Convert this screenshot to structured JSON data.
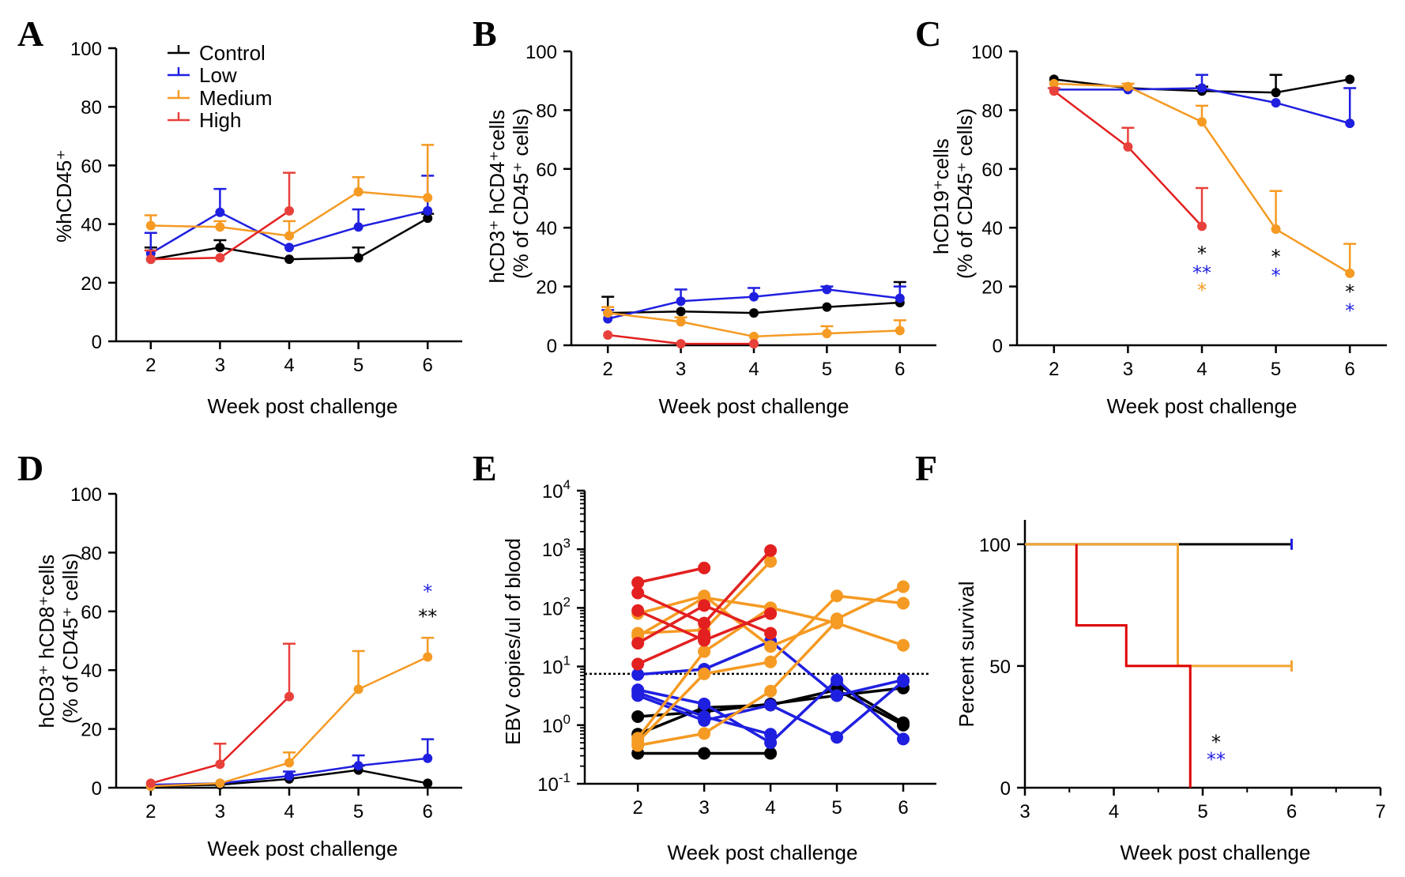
{
  "colors": {
    "control": "#000000",
    "low": "#1f1fe0",
    "medium": "#f59a23",
    "high": "#e8413b",
    "high_line": "#e32020",
    "survival_high": "#dd0000",
    "survival_medium": "#f2a533"
  },
  "chart_data": [
    {
      "id": "A",
      "panel_label": "A",
      "type": "line",
      "xlabel": "Week post challenge",
      "ylabel": "%hCD45⁺",
      "ylabel_lines": [
        "%hCD45⁺"
      ],
      "x_ticks": [
        "2",
        "3",
        "4",
        "5",
        "6"
      ],
      "y_ticks": [
        "0",
        "20",
        "40",
        "60",
        "80",
        "100"
      ],
      "xlim": [
        1.5,
        6.5
      ],
      "ylim": [
        0,
        100
      ],
      "legend": [
        {
          "label": "Control",
          "key": "control"
        },
        {
          "label": "Low",
          "key": "low"
        },
        {
          "label": "Medium",
          "key": "medium"
        },
        {
          "label": "High",
          "key": "high"
        }
      ],
      "series": [
        {
          "name": "Control",
          "key": "control",
          "x": [
            2,
            3,
            4,
            5,
            6
          ],
          "y": [
            28,
            32,
            28,
            28.5,
            42
          ],
          "err": [
            4,
            2.5,
            0,
            3.5,
            1.5
          ]
        },
        {
          "name": "Low",
          "key": "low",
          "x": [
            2,
            3,
            4,
            5,
            6
          ],
          "y": [
            30,
            44,
            32,
            39,
            44.5
          ],
          "err": [
            7,
            8,
            0,
            6,
            12
          ]
        },
        {
          "name": "Medium",
          "key": "medium",
          "x": [
            2,
            3,
            4,
            5,
            6
          ],
          "y": [
            39.5,
            39,
            36,
            51,
            49
          ],
          "err": [
            3.5,
            2,
            5,
            5,
            18
          ]
        },
        {
          "name": "High",
          "key": "high",
          "x": [
            2,
            3,
            4
          ],
          "y": [
            28,
            28.5,
            44.5
          ],
          "err": [
            3,
            0,
            13
          ]
        }
      ],
      "annotations": []
    },
    {
      "id": "B",
      "panel_label": "B",
      "type": "line",
      "xlabel": "Week post challenge",
      "ylabel": "hCD3⁺ hCD4⁺cells (% of CD45⁺ cells)",
      "ylabel_lines": [
        "hCD3⁺ hCD4⁺cells",
        "(% of CD45⁺ cells)"
      ],
      "x_ticks": [
        "2",
        "3",
        "4",
        "5",
        "6"
      ],
      "y_ticks": [
        "0",
        "20",
        "40",
        "60",
        "80",
        "100"
      ],
      "xlim": [
        1.5,
        6.5
      ],
      "ylim": [
        0,
        100
      ],
      "series": [
        {
          "name": "Control",
          "key": "control",
          "x": [
            2,
            3,
            4,
            5,
            6
          ],
          "y": [
            11,
            11.5,
            11,
            13,
            14.5
          ],
          "err": [
            5.5,
            0,
            0,
            0,
            7
          ]
        },
        {
          "name": "Low",
          "key": "low",
          "x": [
            2,
            3,
            4,
            5,
            6
          ],
          "y": [
            9,
            15,
            16.5,
            19,
            16
          ],
          "err": [
            3,
            4,
            3,
            1,
            4
          ]
        },
        {
          "name": "Medium",
          "key": "medium",
          "x": [
            2,
            3,
            4,
            5,
            6
          ],
          "y": [
            11,
            8,
            3,
            4,
            5
          ],
          "err": [
            2,
            1.5,
            0,
            2.5,
            3.5
          ]
        },
        {
          "name": "High",
          "key": "high",
          "x": [
            2,
            3,
            4
          ],
          "y": [
            3.5,
            0.5,
            0.5
          ],
          "err": [
            0,
            0,
            0
          ]
        }
      ],
      "annotations": []
    },
    {
      "id": "C",
      "panel_label": "C",
      "type": "line",
      "xlabel": "Week post challenge",
      "ylabel": "hCD19⁺cells (% of CD45⁺ cells)",
      "ylabel_lines": [
        "hCD19⁺cells",
        "(% of CD45⁺ cells)"
      ],
      "x_ticks": [
        "2",
        "3",
        "4",
        "5",
        "6"
      ],
      "y_ticks": [
        "0",
        "20",
        "40",
        "60",
        "80",
        "100"
      ],
      "xlim": [
        1.5,
        6.5
      ],
      "ylim": [
        0,
        100
      ],
      "series": [
        {
          "name": "Control",
          "key": "control",
          "x": [
            2,
            3,
            4,
            5,
            6
          ],
          "y": [
            90.5,
            87.5,
            86.5,
            86,
            90.5
          ],
          "err": [
            0,
            0,
            1.5,
            6,
            0
          ]
        },
        {
          "name": "Low",
          "key": "low",
          "x": [
            2,
            3,
            4,
            5,
            6
          ],
          "y": [
            87,
            87,
            87.5,
            82.5,
            75.5
          ],
          "err": [
            0,
            0,
            4.5,
            0,
            12
          ]
        },
        {
          "name": "Medium",
          "key": "medium",
          "x": [
            2,
            3,
            4,
            5,
            6
          ],
          "y": [
            89,
            88,
            76,
            39.5,
            24.5
          ],
          "err": [
            0,
            1,
            5.5,
            13,
            10
          ]
        },
        {
          "name": "High",
          "key": "high",
          "x": [
            2,
            3,
            4
          ],
          "y": [
            86.5,
            67.5,
            40.5
          ],
          "err": [
            1,
            6.5,
            13
          ]
        }
      ],
      "annotations": [
        {
          "x": 4,
          "y": 29,
          "text": "*",
          "key": "control"
        },
        {
          "x": 4,
          "y": 22.5,
          "text": "**",
          "key": "low"
        },
        {
          "x": 4,
          "y": 16.5,
          "text": "*",
          "key": "medium"
        },
        {
          "x": 5,
          "y": 28,
          "text": "*",
          "key": "control"
        },
        {
          "x": 5,
          "y": 21.5,
          "text": "*",
          "key": "low"
        },
        {
          "x": 6,
          "y": 16,
          "text": "*",
          "key": "control"
        },
        {
          "x": 6,
          "y": 9.5,
          "text": "*",
          "key": "low"
        }
      ]
    },
    {
      "id": "D",
      "panel_label": "D",
      "type": "line",
      "xlabel": "Week post challenge",
      "ylabel": "hCD3⁺ hCD8⁺cells (% of CD45⁺ cells)",
      "ylabel_lines": [
        "hCD3⁺ hCD8⁺cells",
        "(% of CD45⁺ cells)"
      ],
      "x_ticks": [
        "2",
        "3",
        "4",
        "5",
        "6"
      ],
      "y_ticks": [
        "0",
        "20",
        "40",
        "60",
        "80",
        "100"
      ],
      "xlim": [
        1.5,
        6.5
      ],
      "ylim": [
        0,
        100
      ],
      "series": [
        {
          "name": "Control",
          "key": "control",
          "x": [
            2,
            3,
            4,
            5,
            6
          ],
          "y": [
            0.5,
            1,
            3,
            6,
            1.5
          ],
          "err": [
            0,
            0,
            0,
            1.5,
            0
          ]
        },
        {
          "name": "Low",
          "key": "low",
          "x": [
            2,
            3,
            4,
            5,
            6
          ],
          "y": [
            1,
            1.5,
            4,
            7.5,
            10
          ],
          "err": [
            0,
            0,
            1.5,
            3.5,
            6.5
          ]
        },
        {
          "name": "Medium",
          "key": "medium",
          "x": [
            2,
            3,
            4,
            5,
            6
          ],
          "y": [
            0.5,
            1.5,
            8.5,
            33.5,
            44.5
          ],
          "err": [
            0,
            0,
            3.5,
            13,
            6.5
          ]
        },
        {
          "name": "High",
          "key": "high",
          "x": [
            2,
            3,
            4
          ],
          "y": [
            1.5,
            8,
            31
          ],
          "err": [
            0,
            7,
            18
          ]
        }
      ],
      "annotations": [
        {
          "x": 6,
          "y": 64.5,
          "text": "*",
          "key": "low"
        },
        {
          "x": 6,
          "y": 56,
          "text": "**",
          "key": "control"
        }
      ]
    },
    {
      "id": "E",
      "panel_label": "E",
      "type": "line",
      "yscale": "log",
      "xlabel": "Week post challenge",
      "ylabel": "EBV copies/ul of blood",
      "ylabel_lines": [
        "EBV copies/ul of blood"
      ],
      "x_ticks": [
        "2",
        "3",
        "4",
        "5",
        "6"
      ],
      "y_tick_values": [
        0.1,
        1,
        10,
        100,
        1000,
        10000
      ],
      "y_tick_base": "10",
      "y_tick_exponents": [
        "-1",
        "0",
        "1",
        "2",
        "3",
        "4"
      ],
      "xlim": [
        1.2,
        6.5
      ],
      "ylim": [
        0.1,
        10000
      ],
      "threshold": 7.5,
      "subjects": [
        {
          "key": "control",
          "x": [
            2,
            3,
            4
          ],
          "y": [
            0.33,
            0.33,
            0.33
          ]
        },
        {
          "key": "control",
          "x": [
            2,
            3,
            4,
            5,
            6
          ],
          "y": [
            0.7,
            2.0,
            2.2,
            4.0,
            1.0
          ]
        },
        {
          "key": "control",
          "x": [
            2,
            3,
            4,
            5,
            6
          ],
          "y": [
            1.4,
            1.7,
            2.3,
            3.2,
            4.3
          ]
        },
        {
          "key": "control",
          "x": [
            5,
            6
          ],
          "y": [
            5.0,
            1.1
          ]
        },
        {
          "key": "low",
          "x": [
            2,
            3,
            4,
            5,
            6
          ],
          "y": [
            7.3,
            9.0,
            27,
            3.2,
            5.9
          ]
        },
        {
          "key": "low",
          "x": [
            2,
            3,
            4,
            5,
            6
          ],
          "y": [
            4.0,
            2.3,
            0.5,
            5.9,
            0.58
          ]
        },
        {
          "key": "low",
          "x": [
            2,
            3,
            4,
            5,
            6
          ],
          "y": [
            3.2,
            1.2,
            2.2,
            0.62,
            5.6
          ]
        },
        {
          "key": "low",
          "x": [
            2,
            3,
            4
          ],
          "y": [
            3.6,
            1.4,
            0.7
          ]
        },
        {
          "key": "medium",
          "x": [
            2,
            3,
            4,
            5,
            6
          ],
          "y": [
            80,
            160,
            22,
            65,
            230
          ]
        },
        {
          "key": "medium",
          "x": [
            2,
            3,
            4,
            5,
            6
          ],
          "y": [
            33,
            150,
            100,
            55,
            23
          ]
        },
        {
          "key": "medium",
          "x": [
            2,
            3,
            4,
            5,
            6
          ],
          "y": [
            0.52,
            7.5,
            12,
            160,
            120
          ]
        },
        {
          "key": "medium",
          "x": [
            2,
            3,
            4,
            5
          ],
          "y": [
            0.45,
            0.72,
            3.8,
            60
          ]
        },
        {
          "key": "medium",
          "x": [
            2,
            3,
            4
          ],
          "y": [
            37,
            42,
            620
          ]
        },
        {
          "key": "medium",
          "x": [
            2,
            3,
            4
          ],
          "y": [
            0.6,
            18,
            100
          ]
        },
        {
          "key": "high",
          "x": [
            2,
            3
          ],
          "y": [
            270,
            480
          ]
        },
        {
          "key": "high",
          "x": [
            2,
            3,
            4
          ],
          "y": [
            180,
            55,
            950
          ]
        },
        {
          "key": "high",
          "x": [
            2,
            3,
            4
          ],
          "y": [
            90,
            28,
            80
          ]
        },
        {
          "key": "high",
          "x": [
            2,
            3,
            4
          ],
          "y": [
            25,
            110,
            37
          ]
        },
        {
          "key": "high",
          "x": [
            2,
            3
          ],
          "y": [
            11,
            35
          ]
        }
      ]
    },
    {
      "id": "F",
      "panel_label": "F",
      "type": "survival",
      "xlabel": "Week post challenge",
      "ylabel": "Percent survival",
      "ylabel_lines": [
        "Percent survival"
      ],
      "x_ticks": [
        "3",
        "4",
        "5",
        "6",
        "7"
      ],
      "y_ticks": [
        "0",
        "50",
        "100"
      ],
      "xlim": [
        3,
        7
      ],
      "ylim": [
        0,
        110
      ],
      "series": [
        {
          "name": "Control",
          "key": "control",
          "steps": [
            [
              3,
              100
            ],
            [
              6,
              100
            ]
          ]
        },
        {
          "name": "Low",
          "key": "low",
          "steps": [
            [
              6,
              100
            ]
          ]
        },
        {
          "name": "Medium",
          "key": "survival_medium",
          "steps": [
            [
              3,
              100
            ],
            [
              4.72,
              100
            ],
            [
              4.72,
              50
            ],
            [
              6,
              50
            ]
          ]
        },
        {
          "name": "High",
          "key": "survival_high",
          "steps": [
            [
              3.58,
              100
            ],
            [
              3.58,
              66.7
            ],
            [
              4.14,
              66.7
            ],
            [
              4.14,
              50
            ],
            [
              4.86,
              50
            ],
            [
              4.86,
              0
            ]
          ]
        }
      ],
      "annotations": [
        {
          "x": 5.15,
          "y": 16,
          "text": "*",
          "key": "control"
        },
        {
          "x": 5.15,
          "y": 9,
          "text": "**",
          "key": "low"
        }
      ]
    }
  ]
}
